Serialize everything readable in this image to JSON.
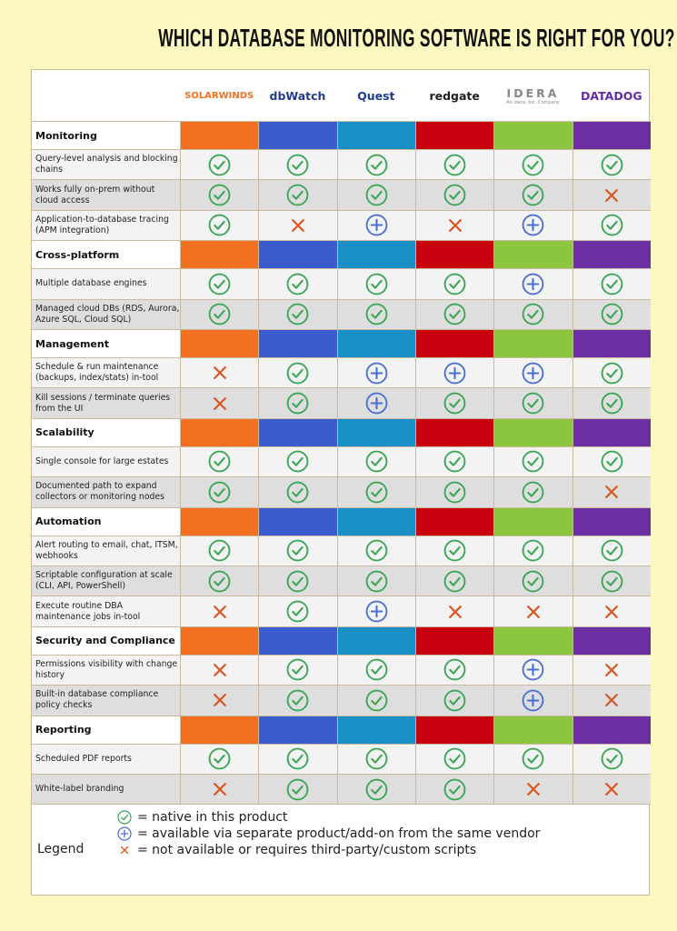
{
  "header": {
    "title": "WHICH DATABASE MONITORING  SOFTWARE IS RIGHT FOR YOU?"
  },
  "vendors": [
    {
      "name": "SOLARWINDS",
      "color": "#f37021",
      "logo_color": "#f37021"
    },
    {
      "name": "dbWatch",
      "color": "#3a5ccc",
      "logo_color": "#243a8c"
    },
    {
      "name": "Quest",
      "color": "#1a8fc6",
      "logo_color": "#1d3d8f"
    },
    {
      "name": "redgate",
      "color": "#c8000d",
      "logo_color": "#222222"
    },
    {
      "name": "IDERA",
      "subtitle": "An Idera, Inc. Company",
      "color": "#8cc63f",
      "logo_color": "#888888"
    },
    {
      "name": "DATADOG",
      "color": "#6b2fa3",
      "logo_color": "#632ca6"
    }
  ],
  "sections": [
    {
      "name": "Monitoring",
      "rows": [
        {
          "feature": "Query-level analysis and blocking chains",
          "cells": [
            0,
            0,
            0,
            0,
            0,
            0
          ]
        },
        {
          "feature": "Works fully on-prem without cloud access",
          "cells": [
            0,
            0,
            0,
            0,
            0,
            2
          ]
        },
        {
          "feature": "Application-to-database tracing (APM integration)",
          "cells": [
            0,
            2,
            1,
            2,
            1,
            0
          ]
        }
      ]
    },
    {
      "name": "Cross-platform",
      "rows": [
        {
          "feature": "Multiple database engines",
          "cells": [
            0,
            0,
            0,
            0,
            1,
            0
          ]
        },
        {
          "feature": "Managed cloud DBs (RDS, Aurora, Azure SQL, Cloud SQL)",
          "cells": [
            0,
            0,
            0,
            0,
            0,
            0
          ]
        }
      ]
    },
    {
      "name": "Management",
      "rows": [
        {
          "feature": "Schedule & run maintenance (backups, index/stats) in-tool",
          "cells": [
            2,
            0,
            1,
            1,
            1,
            0
          ]
        },
        {
          "feature": "Kill sessions / terminate queries from the UI",
          "cells": [
            2,
            0,
            1,
            0,
            0,
            0
          ]
        }
      ]
    },
    {
      "name": "Scalability",
      "rows": [
        {
          "feature": "Single console for large estates",
          "cells": [
            0,
            0,
            0,
            0,
            0,
            0
          ]
        },
        {
          "feature": "Documented path to expand collectors or monitoring nodes",
          "cells": [
            0,
            0,
            0,
            0,
            0,
            2
          ]
        }
      ]
    },
    {
      "name": "Automation",
      "rows": [
        {
          "feature": "Alert routing to email, chat, ITSM, webhooks",
          "cells": [
            0,
            0,
            0,
            0,
            0,
            0
          ]
        },
        {
          "feature": "Scriptable configuration at scale (CLI, API, PowerShell)",
          "cells": [
            0,
            0,
            0,
            0,
            0,
            0
          ]
        },
        {
          "feature": "Execute routine DBA maintenance jobs in-tool",
          "cells": [
            2,
            0,
            1,
            2,
            2,
            2
          ]
        }
      ]
    },
    {
      "name": "Security and Compliance",
      "rows": [
        {
          "feature": "Permissions visibility with change history",
          "cells": [
            2,
            0,
            0,
            0,
            1,
            2
          ]
        },
        {
          "feature": "Built-in database compliance policy checks",
          "cells": [
            2,
            0,
            0,
            0,
            1,
            2
          ]
        }
      ]
    },
    {
      "name": "Reporting",
      "rows": [
        {
          "feature": "Scheduled PDF reports",
          "cells": [
            0,
            0,
            0,
            0,
            0,
            0
          ]
        },
        {
          "feature": "White-label branding",
          "cells": [
            2,
            0,
            0,
            0,
            2,
            2
          ]
        }
      ]
    }
  ],
  "legend": {
    "title": "Legend",
    "items": [
      {
        "label": "= native in this product",
        "color": "#3aa655"
      },
      {
        "label": "= available via separate product/add-on from the same vendor",
        "color": "#4a6fd0"
      },
      {
        "label": "= not available or requires third-party/custom scripts",
        "color": "#d9541e"
      }
    ]
  }
}
